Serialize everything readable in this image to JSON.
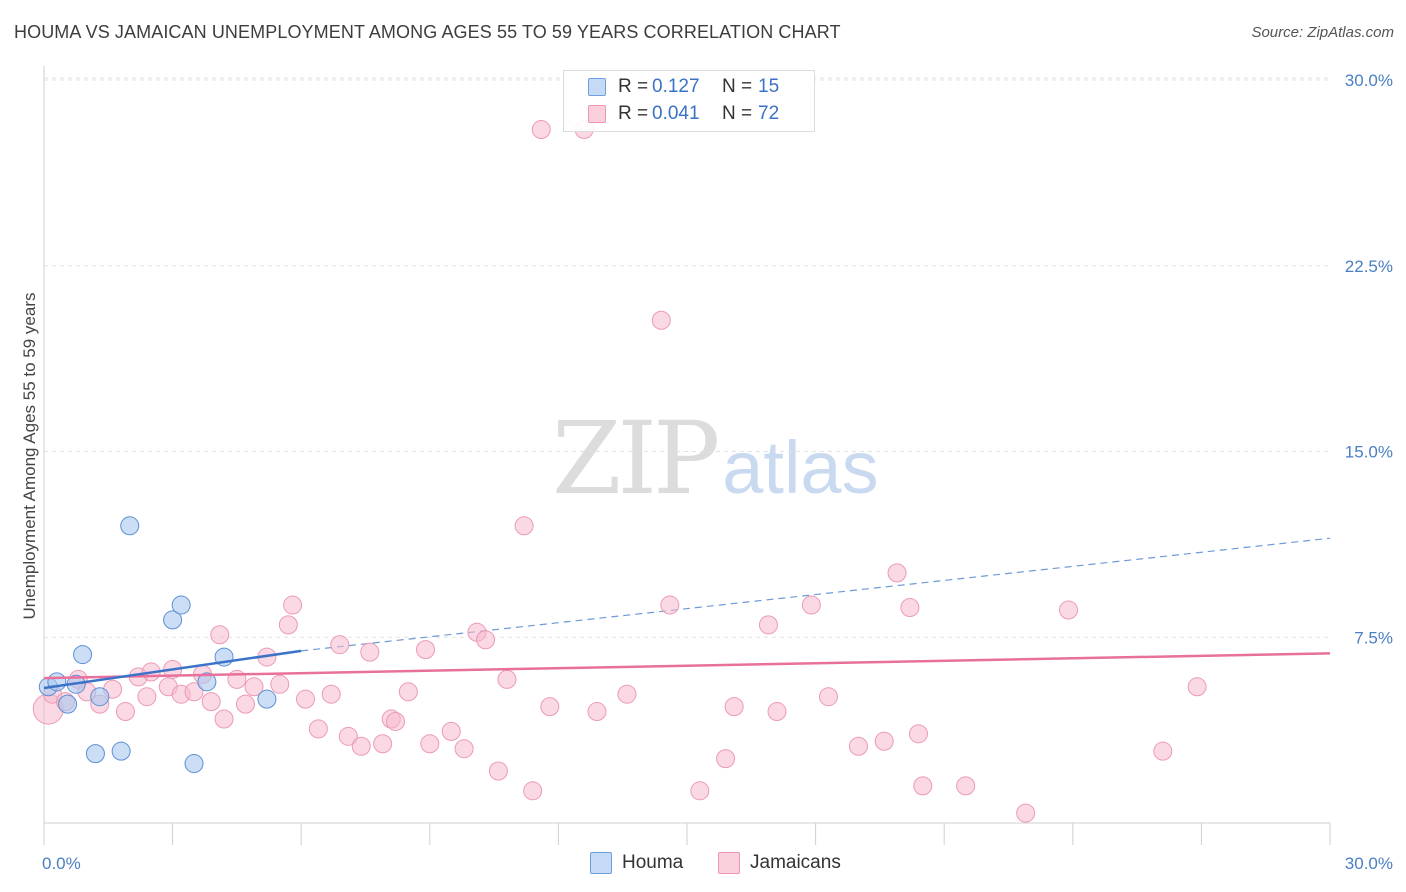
{
  "title": "HOUMA VS JAMAICAN UNEMPLOYMENT AMONG AGES 55 TO 59 YEARS CORRELATION CHART",
  "source": "Source: ZipAtlas.com",
  "watermark": {
    "zip": "ZIP",
    "atlas": "atlas"
  },
  "legend": {
    "houma": {
      "r_label": "R =",
      "r_value": "0.127",
      "n_label": "N =",
      "n_value": "15"
    },
    "jamaicans": {
      "r_label": "R =",
      "r_value": "0.041",
      "n_label": "N =",
      "n_value": "72"
    }
  },
  "bottom_legend": {
    "houma": "Houma",
    "jamaicans": "Jamaicans"
  },
  "chart_data": {
    "type": "scatter",
    "title": "HOUMA VS JAMAICAN UNEMPLOYMENT AMONG AGES 55 TO 59 YEARS CORRELATION CHART",
    "xlabel": "",
    "ylabel": "Unemployment Among Ages 55 to 59 years",
    "xlim": [
      0,
      30
    ],
    "ylim": [
      0,
      30
    ],
    "y_ticks": [
      7.5,
      15.0,
      22.5,
      30.0
    ],
    "y_tick_labels": [
      "7.5%",
      "15.0%",
      "22.5%",
      "30.0%"
    ],
    "x_tick_labels": {
      "min": "0.0%",
      "max": "30.0%"
    },
    "grid": true,
    "legend_position": "top-center",
    "colors": {
      "houma": "#a9c8f0",
      "houma_line": "#3b73c8",
      "jamaicans": "#f6b9cd",
      "jamaicans_line": "#e8709a"
    },
    "series": [
      {
        "name": "Houma",
        "x": [
          0.1,
          0.3,
          0.55,
          0.75,
          1.3,
          2.0,
          1.2,
          1.8,
          3.0,
          3.2,
          3.8,
          4.2,
          5.2,
          0.9,
          3.5
        ],
        "y": [
          5.5,
          5.7,
          4.8,
          5.6,
          5.1,
          12.0,
          2.8,
          2.9,
          8.2,
          8.8,
          5.7,
          6.7,
          5.0,
          6.8,
          2.4
        ]
      },
      {
        "name": "Jamaicans",
        "x": [
          0.1,
          0.2,
          0.5,
          0.8,
          1.0,
          1.3,
          1.6,
          1.9,
          2.2,
          2.4,
          2.5,
          2.9,
          3.0,
          3.2,
          3.5,
          3.7,
          3.9,
          4.1,
          4.2,
          4.5,
          4.7,
          4.9,
          5.2,
          5.5,
          5.7,
          5.8,
          6.1,
          6.4,
          6.7,
          6.9,
          7.1,
          7.4,
          7.6,
          7.9,
          8.1,
          8.2,
          8.5,
          8.9,
          9.0,
          9.5,
          9.8,
          10.1,
          10.3,
          10.6,
          10.8,
          11.2,
          11.4,
          11.6,
          11.8,
          12.6,
          12.9,
          13.6,
          14.4,
          14.6,
          15.3,
          15.9,
          16.1,
          16.9,
          17.1,
          17.9,
          18.3,
          19.0,
          19.6,
          19.9,
          20.2,
          20.4,
          20.5,
          21.5,
          22.9,
          23.9,
          26.1,
          26.9
        ],
        "y": [
          4.6,
          5.2,
          4.9,
          5.8,
          5.3,
          4.8,
          5.4,
          4.5,
          5.9,
          5.1,
          6.1,
          5.5,
          6.2,
          5.2,
          5.3,
          6.0,
          4.9,
          7.6,
          4.2,
          5.8,
          4.8,
          5.5,
          6.7,
          5.6,
          8.0,
          8.8,
          5.0,
          3.8,
          5.2,
          7.2,
          3.5,
          3.1,
          6.9,
          3.2,
          4.2,
          4.1,
          5.3,
          7.0,
          3.2,
          3.7,
          3.0,
          7.7,
          7.4,
          2.1,
          5.8,
          12.0,
          1.3,
          28.0,
          4.7,
          28.0,
          4.5,
          5.2,
          20.3,
          8.8,
          1.3,
          2.6,
          4.7,
          8.0,
          4.5,
          8.8,
          5.1,
          3.1,
          3.3,
          10.1,
          8.7,
          3.6,
          1.5,
          1.5,
          0.4,
          8.6,
          2.9,
          5.5
        ]
      }
    ],
    "trendlines": [
      {
        "name": "Houma",
        "x": [
          0,
          6.0
        ],
        "y": [
          5.45,
          6.95
        ],
        "extended_to": [
          30,
          11.5
        ],
        "style": "solid then dashed"
      },
      {
        "name": "Jamaicans",
        "x": [
          0,
          30
        ],
        "y": [
          5.85,
          6.85
        ],
        "style": "solid"
      }
    ]
  }
}
